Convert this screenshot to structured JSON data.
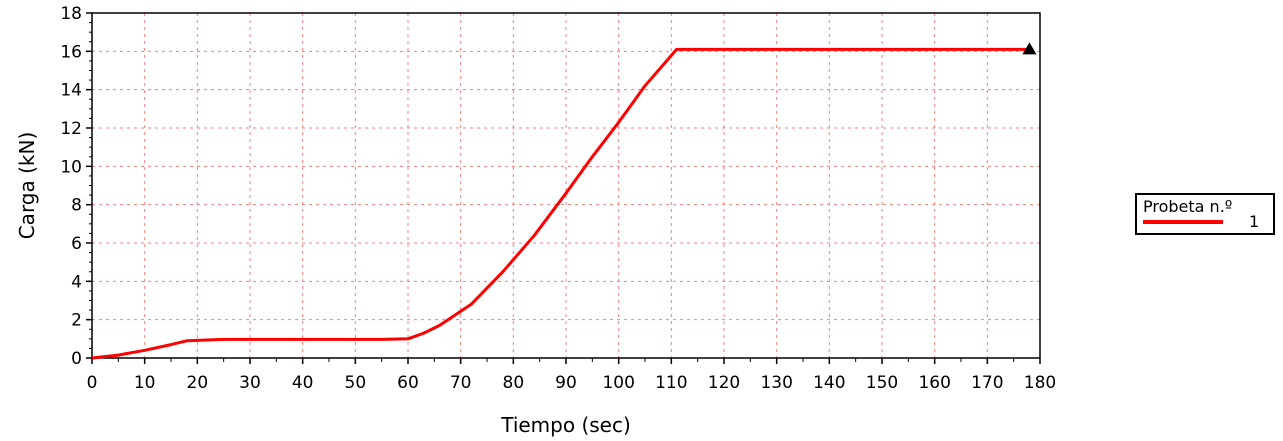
{
  "chart_data": {
    "type": "line",
    "xlabel": "Tiempo (sec)",
    "ylabel": "Carga (kN)",
    "xlim": [
      0,
      180
    ],
    "ylim": [
      0,
      18
    ],
    "xticks": [
      0,
      10,
      20,
      30,
      40,
      50,
      60,
      70,
      80,
      90,
      100,
      110,
      120,
      130,
      140,
      150,
      160,
      170,
      180
    ],
    "yticks": [
      0,
      2,
      4,
      6,
      8,
      10,
      12,
      14,
      16,
      18
    ],
    "grid": true,
    "legend_position": "right",
    "legend_title": "Probeta n.º",
    "series": [
      {
        "name": "1",
        "color": "#ff0000",
        "x": [
          0,
          5,
          10,
          15,
          18,
          25,
          40,
          55,
          60,
          63,
          66,
          72,
          78,
          84,
          90,
          95,
          100,
          105,
          111,
          120,
          150,
          178
        ],
        "y": [
          0,
          0.15,
          0.4,
          0.7,
          0.9,
          0.97,
          0.97,
          0.97,
          1.0,
          1.3,
          1.7,
          2.8,
          4.5,
          6.4,
          8.6,
          10.5,
          12.3,
          14.2,
          16.1,
          16.1,
          16.1,
          16.1
        ]
      }
    ],
    "end_marker": {
      "x": 178,
      "y": 16.1,
      "shape": "triangle"
    }
  }
}
